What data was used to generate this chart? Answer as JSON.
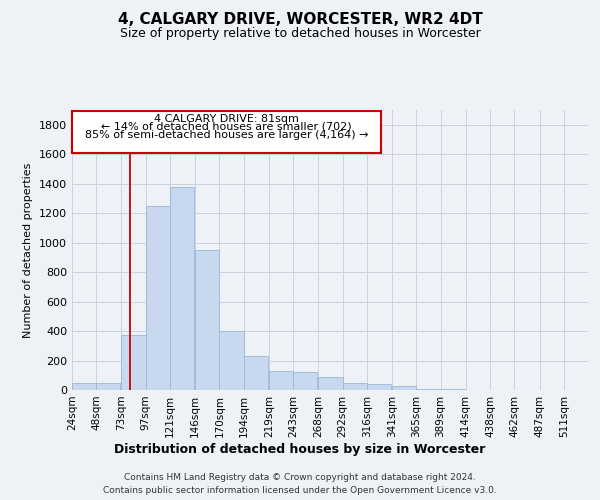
{
  "title": "4, CALGARY DRIVE, WORCESTER, WR2 4DT",
  "subtitle": "Size of property relative to detached houses in Worcester",
  "xlabel": "Distribution of detached houses by size in Worcester",
  "ylabel": "Number of detached properties",
  "bar_color": "#c8d8ef",
  "bar_edge_color": "#9ab8d8",
  "grid_color": "#c8d4e0",
  "annotation_line1": "4 CALGARY DRIVE: 81sqm",
  "annotation_line2": "← 14% of detached houses are smaller (702)",
  "annotation_line3": "85% of semi-detached houses are larger (4,164) →",
  "property_line_x": 81,
  "footer_line1": "Contains HM Land Registry data © Crown copyright and database right 2024.",
  "footer_line2": "Contains public sector information licensed under the Open Government Licence v3.0.",
  "categories": [
    "24sqm",
    "48sqm",
    "73sqm",
    "97sqm",
    "121sqm",
    "146sqm",
    "170sqm",
    "194sqm",
    "219sqm",
    "243sqm",
    "268sqm",
    "292sqm",
    "316sqm",
    "341sqm",
    "365sqm",
    "389sqm",
    "414sqm",
    "438sqm",
    "462sqm",
    "487sqm",
    "511sqm"
  ],
  "bin_left": [
    24,
    48,
    73,
    97,
    121,
    146,
    170,
    194,
    219,
    243,
    268,
    292,
    316,
    341,
    365,
    389,
    414,
    438,
    462,
    487,
    511
  ],
  "bin_width": 24,
  "values": [
    50,
    50,
    370,
    1250,
    1380,
    950,
    400,
    230,
    130,
    120,
    85,
    45,
    40,
    30,
    5,
    5,
    2,
    1,
    1,
    0,
    0
  ],
  "ylim": [
    0,
    1900
  ],
  "yticks": [
    0,
    200,
    400,
    600,
    800,
    1000,
    1200,
    1400,
    1600,
    1800
  ],
  "xlim_left": 24,
  "xlim_right": 535,
  "background_color": "#eef2f7",
  "plot_bg_color": "#eef2f7",
  "title_fontsize": 11,
  "subtitle_fontsize": 9
}
